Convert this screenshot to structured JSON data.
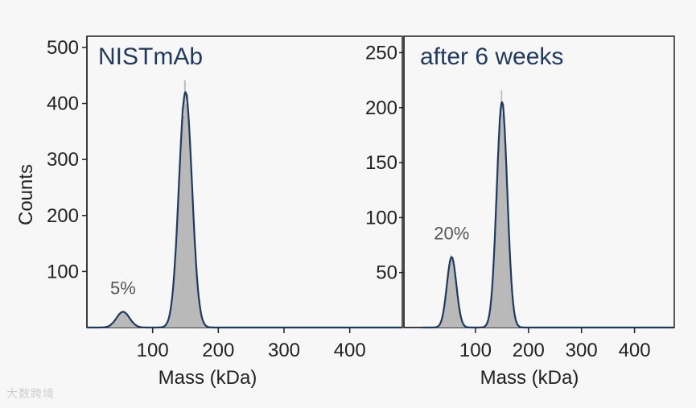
{
  "chart_data": [
    {
      "type": "histogram",
      "title": "NISTmAb",
      "xlabel": "Mass (kDa)",
      "ylabel": "Counts",
      "xlim": [
        0,
        480
      ],
      "ylim": [
        0,
        520
      ],
      "xticks": [
        100,
        200,
        300,
        400
      ],
      "yticks": [
        100,
        200,
        300,
        400,
        500
      ],
      "peaks": [
        {
          "center": 55,
          "height": 28,
          "sigma": 10,
          "label": "5%"
        },
        {
          "center": 150,
          "height": 420,
          "sigma": 10,
          "label": ""
        }
      ]
    },
    {
      "type": "histogram",
      "title": "after 6 weeks",
      "xlabel": "Mass (kDa)",
      "ylabel": "",
      "xlim": [
        -35,
        475
      ],
      "ylim": [
        0,
        265
      ],
      "xticks": [
        100,
        200,
        300,
        400
      ],
      "yticks": [
        50,
        100,
        150,
        200,
        250
      ],
      "peaks": [
        {
          "center": 55,
          "height": 64,
          "sigma": 9,
          "label": "20%"
        },
        {
          "center": 150,
          "height": 205,
          "sigma": 10,
          "label": ""
        }
      ]
    }
  ],
  "watermark": "大数跨境"
}
